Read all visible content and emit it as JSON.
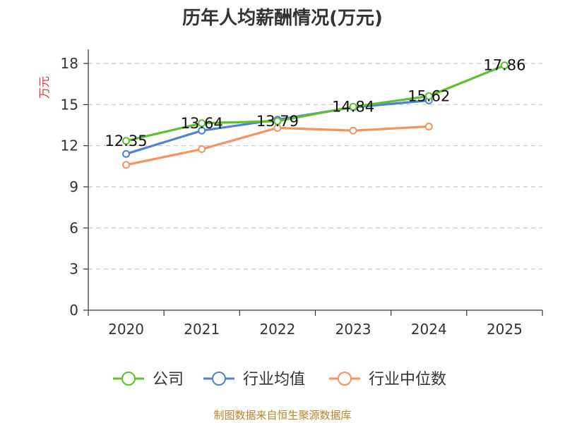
{
  "chart_data": {
    "type": "line",
    "title": "历年人均薪酬情况(万元)",
    "ylabel": "万元",
    "xlabel": "",
    "ylim": [
      0,
      18
    ],
    "yticks": [
      0,
      3,
      6,
      9,
      12,
      15,
      18
    ],
    "categories": [
      "2020",
      "2021",
      "2022",
      "2023",
      "2024",
      "2025"
    ],
    "grid": true,
    "legend_position": "bottom",
    "series": [
      {
        "name": "公司",
        "color": "#5cc12d",
        "values": [
          12.35,
          13.64,
          13.79,
          14.84,
          15.62,
          17.86
        ],
        "labels": [
          "12.35",
          "13.64",
          "13.79",
          "14.84",
          "15.62",
          "17.86"
        ]
      },
      {
        "name": "行业均值",
        "color": "#4f81d6",
        "values": [
          11.4,
          13.1,
          13.9,
          14.8,
          15.3,
          null
        ]
      },
      {
        "name": "行业中位数",
        "color": "#f6925b",
        "values": [
          10.6,
          11.75,
          13.3,
          13.1,
          13.4,
          null
        ]
      }
    ],
    "source": "制图数据来自恒生聚源数据库"
  }
}
